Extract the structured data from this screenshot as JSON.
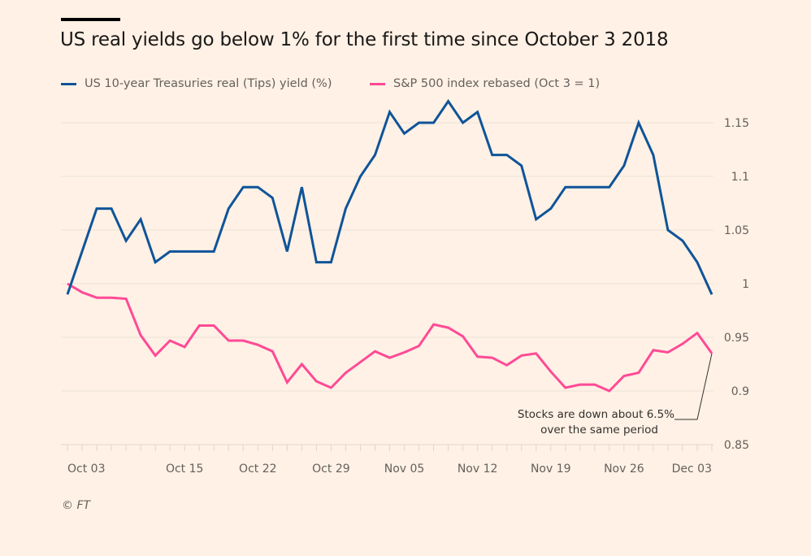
{
  "chart_data": {
    "type": "line",
    "title": "US real yields go below 1% for the first time since October 3 2018",
    "xlabel": "",
    "ylabel": "",
    "ylim": [
      0.85,
      1.17
    ],
    "yticks": [
      0.85,
      0.9,
      0.95,
      1,
      1.05,
      1.1,
      1.15
    ],
    "ytick_labels": [
      "0.85",
      "0.9",
      "0.95",
      "1",
      "1.05",
      "1.1",
      "1.15"
    ],
    "xtick_labels": [
      "Oct 03",
      "Oct 15",
      "Oct 22",
      "Oct 29",
      "Nov 05",
      "Nov 12",
      "Nov 19",
      "Nov 26",
      "Dec 03"
    ],
    "xtick_indices": [
      0,
      8,
      13,
      18,
      23,
      28,
      33,
      38,
      44
    ],
    "grid": true,
    "legend_position": "top-left",
    "series": [
      {
        "name": "US 10-year Treasuries real (Tips) yield (%)",
        "color": "#0f5499",
        "values": [
          0.99,
          1.03,
          1.07,
          1.07,
          1.04,
          1.06,
          1.02,
          1.03,
          1.03,
          1.03,
          1.03,
          1.07,
          1.09,
          1.09,
          1.08,
          1.03,
          1.09,
          1.02,
          1.02,
          1.07,
          1.1,
          1.12,
          1.16,
          1.14,
          1.15,
          1.15,
          1.17,
          1.15,
          1.16,
          1.12,
          1.12,
          1.11,
          1.06,
          1.07,
          1.09,
          1.09,
          1.09,
          1.09,
          1.11,
          1.15,
          1.12,
          1.05,
          1.04,
          1.02,
          0.99
        ]
      },
      {
        "name": "S&P 500 index rebased (Oct 3 = 1)",
        "color": "#ff4a96",
        "values": [
          1.0,
          0.992,
          0.987,
          0.987,
          0.986,
          0.952,
          0.933,
          0.947,
          0.941,
          0.961,
          0.961,
          0.947,
          0.947,
          0.943,
          0.937,
          0.908,
          0.925,
          0.909,
          0.903,
          0.917,
          0.927,
          0.937,
          0.931,
          0.936,
          0.942,
          0.962,
          0.959,
          0.951,
          0.932,
          0.931,
          0.924,
          0.933,
          0.935,
          0.918,
          0.903,
          0.906,
          0.906,
          0.9,
          0.914,
          0.917,
          0.938,
          0.936,
          0.944,
          0.954,
          0.935
        ]
      }
    ],
    "annotations": [
      {
        "text_lines": [
          "Stocks are down about 6.5%",
          "over the same period"
        ],
        "series_index": 1,
        "point_index": 44
      }
    ],
    "source": "© FT"
  }
}
